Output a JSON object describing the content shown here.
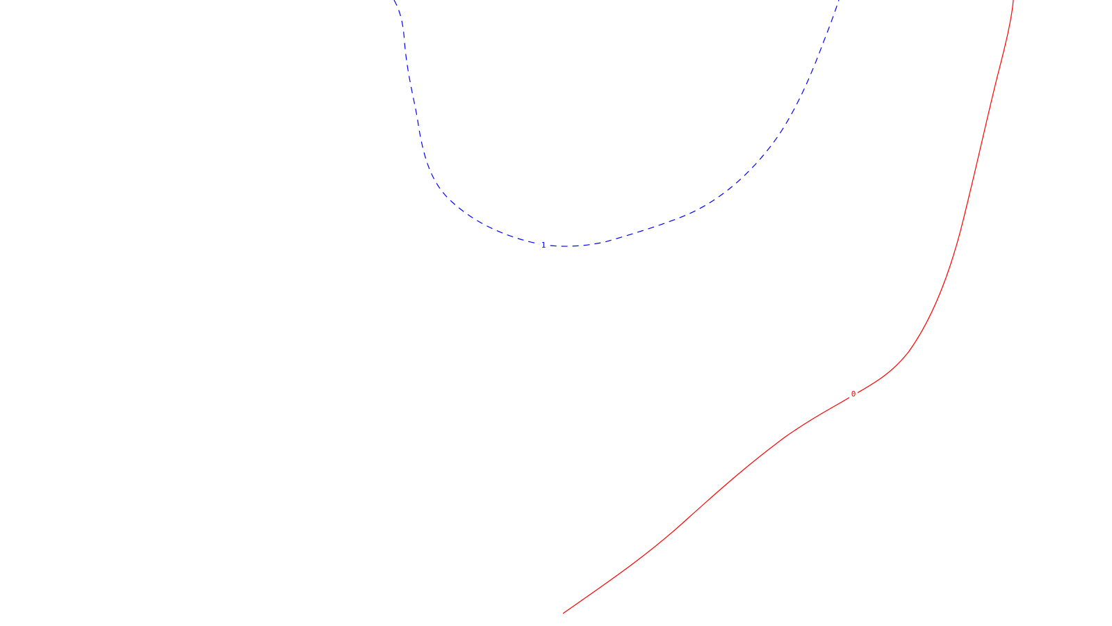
{
  "contours": [
    {
      "id": "contour-1",
      "level_label": "1",
      "color": "#0000ff",
      "line_style": "dashed"
    },
    {
      "id": "contour-0",
      "level_label": "0",
      "color": "#ff0000",
      "line_style": "solid"
    }
  ],
  "background_color": "#ffffff"
}
